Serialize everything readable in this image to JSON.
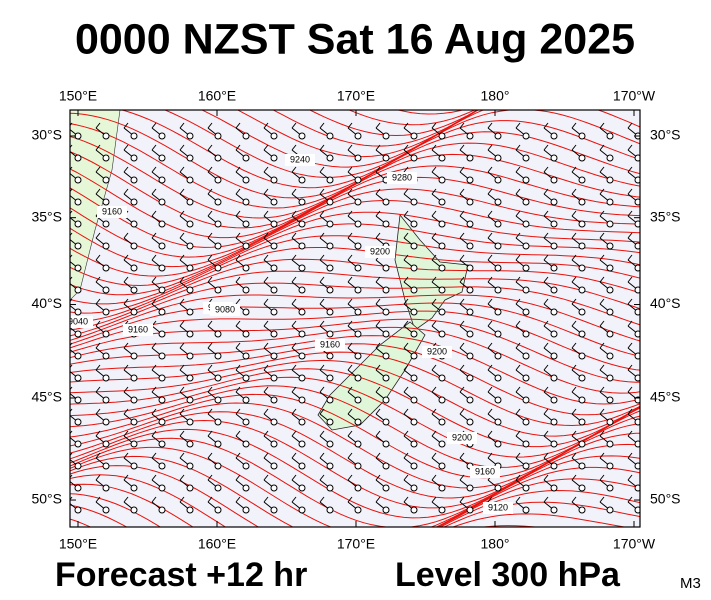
{
  "header": {
    "title": "0000 NZST Sat 16 Aug 2025"
  },
  "map": {
    "lon_ticks": [
      {
        "value": 150,
        "label": "150°E"
      },
      {
        "value": 160,
        "label": "160°E"
      },
      {
        "value": 170,
        "label": "170°E"
      },
      {
        "value": 180,
        "label": "180°"
      },
      {
        "value": 190,
        "label": "170°W"
      }
    ],
    "lat_ticks": [
      {
        "value": -30,
        "label": "30°S"
      },
      {
        "value": -35,
        "label": "35°S"
      },
      {
        "value": -40,
        "label": "40°S"
      },
      {
        "value": -45,
        "label": "45°S"
      },
      {
        "value": -50,
        "label": "50°S"
      }
    ],
    "contour_labels": [
      "9160",
      "9120",
      "9080",
      "9160",
      "9200",
      "9240",
      "9280",
      "9200",
      "9200",
      "9160",
      "9120",
      "9040",
      "9160"
    ]
  },
  "footer": {
    "forecast": "Forecast +12 hr",
    "level": "Level 300 hPa",
    "code": "M3"
  }
}
